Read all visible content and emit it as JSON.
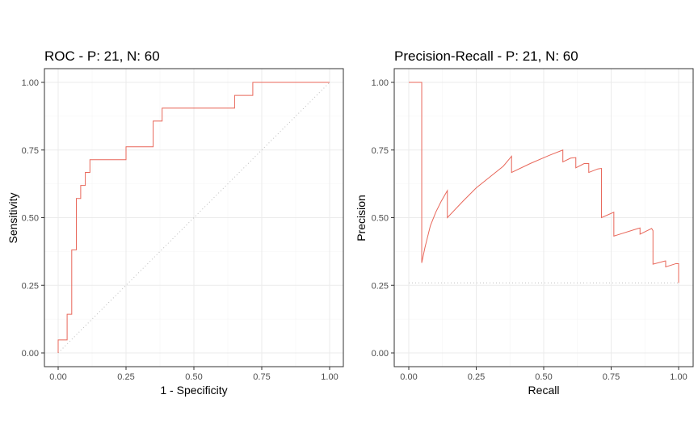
{
  "chart_data": [
    {
      "type": "line",
      "title": "ROC - P: 21, N: 60",
      "xlabel": "1 - Specificity",
      "ylabel": "Sensitivity",
      "xlim": [
        0,
        1
      ],
      "ylim": [
        0,
        1
      ],
      "x_ticks": [
        "0.00",
        "0.25",
        "0.50",
        "0.75",
        "1.00"
      ],
      "y_ticks": [
        "0.00",
        "0.25",
        "0.50",
        "0.75",
        "1.00"
      ],
      "grid": true,
      "line_color": "#e8675a",
      "reference_line": {
        "style": "dotted",
        "from": [
          0,
          0
        ],
        "to": [
          1,
          1
        ],
        "color": "#bdbdbd"
      },
      "series": [
        {
          "x": [
            0,
            0,
            0.033,
            0.033,
            0.05,
            0.05,
            0.067,
            0.067,
            0.083,
            0.083,
            0.1,
            0.1,
            0.117,
            0.117,
            0.25,
            0.25,
            0.35,
            0.35,
            0.383,
            0.383,
            0.65,
            0.65,
            0.717,
            0.717,
            1.0
          ],
          "y": [
            0,
            0.048,
            0.048,
            0.143,
            0.143,
            0.381,
            0.381,
            0.571,
            0.571,
            0.619,
            0.619,
            0.667,
            0.667,
            0.714,
            0.714,
            0.762,
            0.762,
            0.857,
            0.857,
            0.905,
            0.905,
            0.952,
            0.952,
            1.0,
            1.0
          ]
        }
      ]
    },
    {
      "type": "line",
      "title": "Precision-Recall - P: 21, N: 60",
      "xlabel": "Recall",
      "ylabel": "Precision",
      "xlim": [
        0,
        1
      ],
      "ylim": [
        0,
        1
      ],
      "x_ticks": [
        "0.00",
        "0.25",
        "0.50",
        "0.75",
        "1.00"
      ],
      "y_ticks": [
        "0.00",
        "0.25",
        "0.50",
        "0.75",
        "1.00"
      ],
      "grid": true,
      "line_color": "#e8675a",
      "reference_line": {
        "style": "dotted",
        "from": [
          0,
          0.259
        ],
        "to": [
          1,
          0.259
        ],
        "color": "#bdbdbd"
      },
      "series": [
        {
          "x": [
            0,
            0.048,
            0.048,
            0.048,
            0.06,
            0.08,
            0.1,
            0.12,
            0.143,
            0.143,
            0.2,
            0.25,
            0.3,
            0.35,
            0.381,
            0.381,
            0.45,
            0.52,
            0.571,
            0.571,
            0.6,
            0.619,
            0.619,
            0.65,
            0.667,
            0.667,
            0.7,
            0.714,
            0.714,
            0.76,
            0.76,
            0.85,
            0.857,
            0.857,
            0.9,
            0.905,
            0.905,
            0.95,
            0.952,
            0.952,
            0.99,
            1.0,
            1.0
          ],
          "y": [
            1.0,
            1.0,
            0.667,
            0.333,
            0.39,
            0.47,
            0.52,
            0.56,
            0.6,
            0.5,
            0.56,
            0.61,
            0.65,
            0.69,
            0.727,
            0.667,
            0.7,
            0.73,
            0.75,
            0.706,
            0.72,
            0.722,
            0.684,
            0.7,
            0.7,
            0.667,
            0.68,
            0.682,
            0.5,
            0.52,
            0.432,
            0.46,
            0.462,
            0.439,
            0.46,
            0.452,
            0.328,
            0.34,
            0.34,
            0.318,
            0.33,
            0.33,
            0.259
          ]
        }
      ]
    }
  ]
}
